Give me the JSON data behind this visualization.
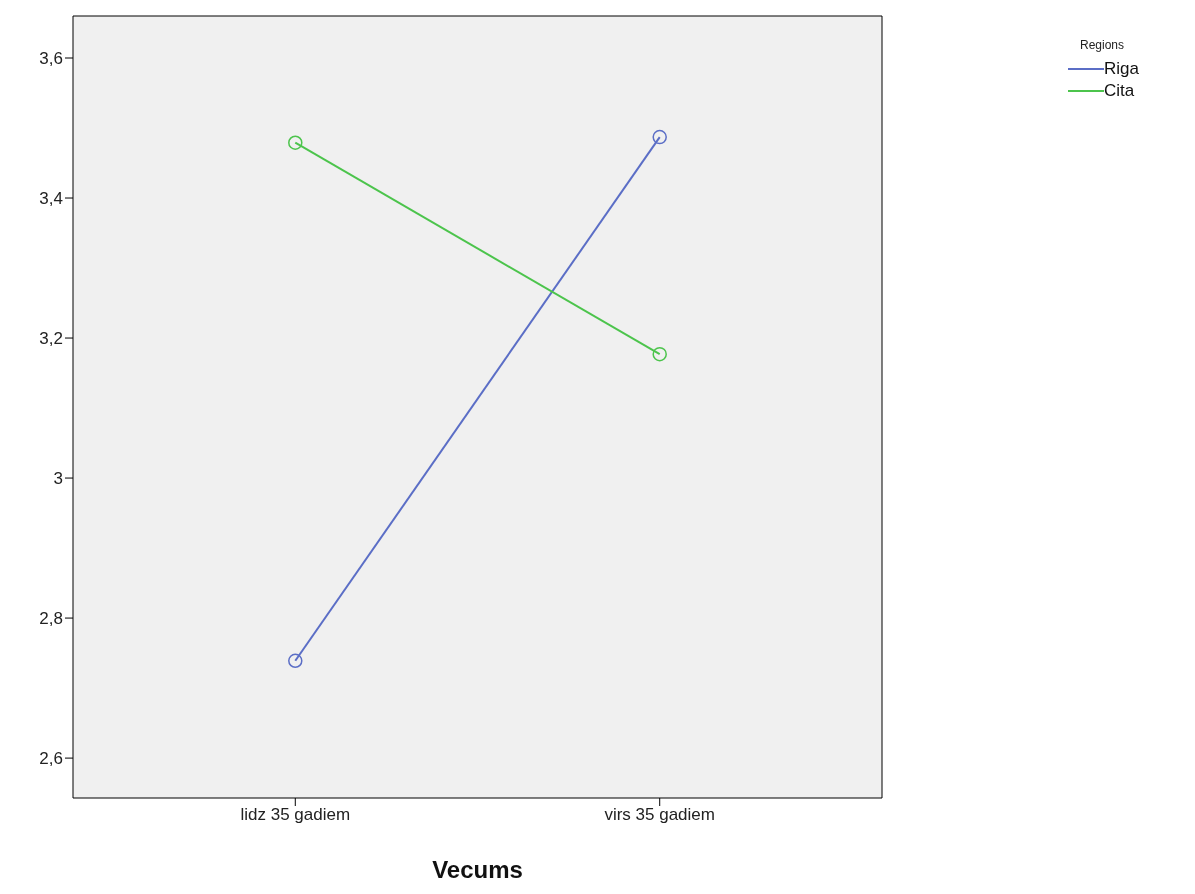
{
  "chart_data": {
    "type": "line",
    "xlabel": "Vecums",
    "legend_title": "Regions",
    "categories": [
      "lidz 35 gadiem",
      "virs 35 gadiem"
    ],
    "series": [
      {
        "name": "Riga",
        "color": "#5b6ec6",
        "values": [
          2.739,
          3.487
        ]
      },
      {
        "name": "Cita",
        "color": "#4cc44c",
        "values": [
          3.479,
          3.177
        ]
      }
    ],
    "ylim": [
      2.543,
      3.66
    ],
    "yticks": [
      {
        "value": 2.6,
        "label": "2,6"
      },
      {
        "value": 2.8,
        "label": "2,8"
      },
      3,
      {
        "value": 3.2,
        "label": "3,2"
      },
      {
        "value": 3.4,
        "label": "3,4"
      },
      {
        "value": 3.6,
        "label": "3,6"
      }
    ],
    "grid": false,
    "legend": "top right",
    "marker": "circle",
    "line_style": "solid"
  }
}
